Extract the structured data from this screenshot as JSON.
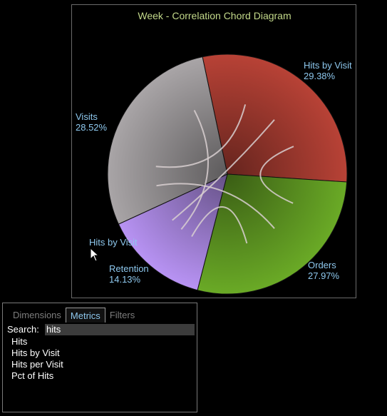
{
  "chart_data": {
    "type": "chord",
    "title": "Week - Correlation Chord Diagram",
    "segments": [
      {
        "name": "Hits by Visit",
        "value": 29.38,
        "value_label": "29.38%",
        "color": "#b84236"
      },
      {
        "name": "Orders",
        "value": 27.97,
        "value_label": "27.97%",
        "color": "#6aaa26"
      },
      {
        "name": "Retention",
        "value": 14.13,
        "value_label": "14.13%",
        "color": "#b893f4"
      },
      {
        "name": "Visits",
        "value": 28.52,
        "value_label": "28.52%",
        "color": "#a9a5a7"
      }
    ]
  },
  "drag_ghost_label": "Hits by Visit",
  "field_panel": {
    "tabs": [
      {
        "label": "Dimensions",
        "active": false
      },
      {
        "label": "Metrics",
        "active": true
      },
      {
        "label": "Filters",
        "active": false
      }
    ],
    "search_label": "Search:",
    "search_value": "hits",
    "items": [
      "Hits",
      "Hits by Visit",
      "Hits per Visit",
      "Pct of Hits"
    ]
  }
}
